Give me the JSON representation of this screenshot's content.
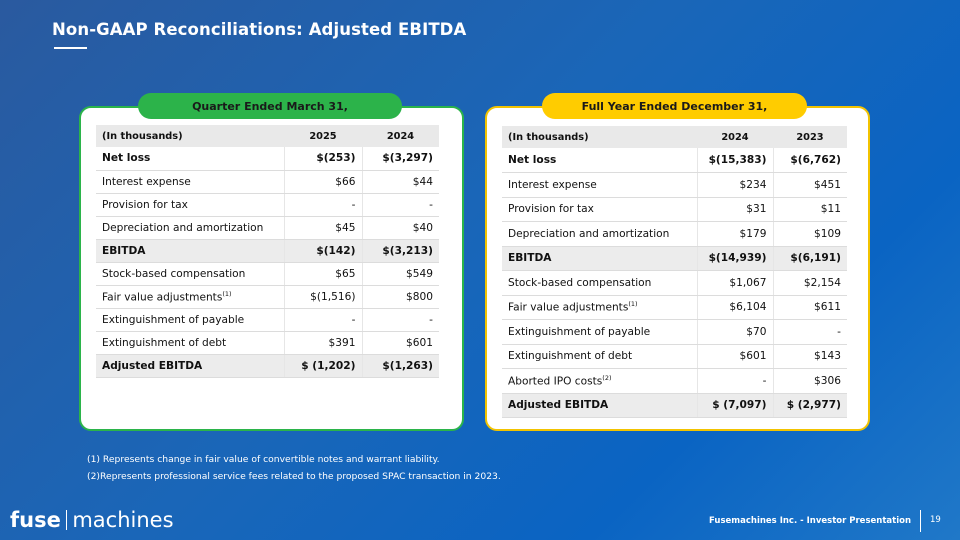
{
  "title": "Non-GAAP Reconciliations:  Adjusted EBITDA",
  "left": {
    "pill": "Quarter Ended March 31,",
    "header": [
      "(In thousands)",
      "2025",
      "2024"
    ],
    "rows": [
      {
        "label": "Net loss",
        "sup": "",
        "v1": "$(253)",
        "v2": "$(3,297)"
      },
      {
        "label": "Interest expense",
        "sup": "",
        "v1": "$66",
        "v2": "$44"
      },
      {
        "label": "Provision for tax",
        "sup": "",
        "v1": "-",
        "v2": "-"
      },
      {
        "label": "Depreciation and amortization",
        "sup": "",
        "v1": "$45",
        "v2": "$40"
      },
      {
        "label": "EBITDA",
        "sup": "",
        "v1": "$(142)",
        "v2": "$(3,213)"
      },
      {
        "label": "Stock-based compensation",
        "sup": "",
        "v1": "$65",
        "v2": "$549"
      },
      {
        "label": "Fair value adjustments",
        "sup": "(1)",
        "v1": "$(1,516)",
        "v2": "$800"
      },
      {
        "label": "Extinguishment of payable",
        "sup": "",
        "v1": "-",
        "v2": "-"
      },
      {
        "label": "Extinguishment of debt",
        "sup": "",
        "v1": "$391",
        "v2": "$601"
      },
      {
        "label": "Adjusted EBITDA",
        "sup": "",
        "v1": "$ (1,202)",
        "v2": "$(1,263)"
      }
    ]
  },
  "right": {
    "pill": "Full Year Ended December 31,",
    "header": [
      "(In thousands)",
      "2024",
      "2023"
    ],
    "rows": [
      {
        "label": "Net loss",
        "sup": "",
        "v1": "$(15,383)",
        "v2": "$(6,762)"
      },
      {
        "label": "Interest expense",
        "sup": "",
        "v1": "$234",
        "v2": "$451"
      },
      {
        "label": "Provision for tax",
        "sup": "",
        "v1": "$31",
        "v2": "$11"
      },
      {
        "label": "Depreciation and amortization",
        "sup": "",
        "v1": "$179",
        "v2": "$109"
      },
      {
        "label": "EBITDA",
        "sup": "",
        "v1": "$(14,939)",
        "v2": "$(6,191)"
      },
      {
        "label": "Stock-based compensation",
        "sup": "",
        "v1": "$1,067",
        "v2": "$2,154"
      },
      {
        "label": "Fair value adjustments",
        "sup": "(1)",
        "v1": "$6,104",
        "v2": "$611"
      },
      {
        "label": "Extinguishment of payable",
        "sup": "",
        "v1": "$70",
        "v2": "-"
      },
      {
        "label": "Extinguishment of debt",
        "sup": "",
        "v1": "$601",
        "v2": "$143"
      },
      {
        "label": "Aborted IPO costs",
        "sup": "(2)",
        "v1": "-",
        "v2": "$306"
      },
      {
        "label": "Adjusted EBITDA",
        "sup": "",
        "v1": "$ (7,097)",
        "v2": "$ (2,977)"
      }
    ]
  },
  "footnotes": [
    "(1) Represents change in fair value of convertible notes and warrant liability.",
    "(2)Represents professional service fees related to the proposed SPAC transaction in 2023."
  ],
  "logo": {
    "fuse": "fuse",
    "machines": "machines"
  },
  "footer": {
    "text": "Fusemachines Inc. - Investor Presentation",
    "page": "19"
  }
}
